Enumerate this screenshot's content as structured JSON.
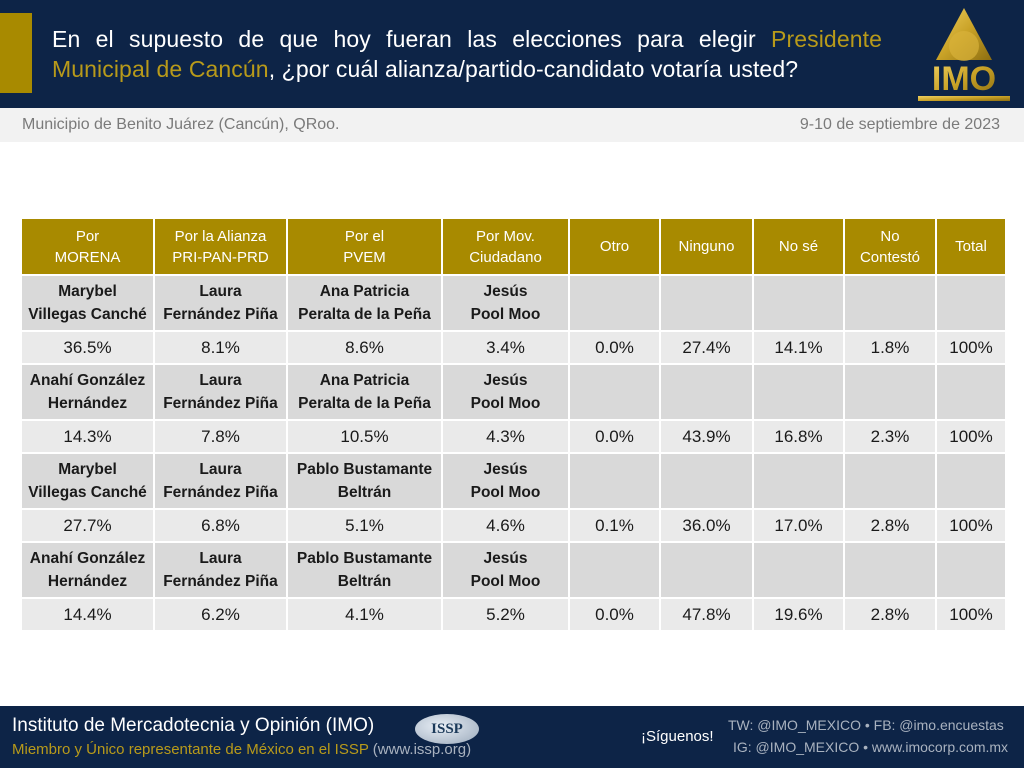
{
  "header": {
    "title_part1": "En el supuesto de que hoy fueran las elecciones para elegir ",
    "title_highlight": "Presidente Municipal de Cancún",
    "title_part2": ", ¿por cuál alianza/partido-candidato votaría usted?",
    "logo_text": "IMO",
    "accent_color": "#a88a00",
    "background_color": "#0d2447"
  },
  "subbar": {
    "location": "Municipio de Benito Juárez (Cancún), QRoo.",
    "date": "9-10 de septiembre de 2023"
  },
  "chart_data": {
    "type": "table",
    "title": "En el supuesto de que hoy fueran las elecciones para elegir Presidente Municipal de Cancún, ¿por cuál alianza/partido-candidato votaría usted?",
    "columns": [
      {
        "line1": "Por",
        "line2": "MORENA"
      },
      {
        "line1": "Por la Alianza",
        "line2": "PRI-PAN-PRD"
      },
      {
        "line1": "Por el",
        "line2": "PVEM"
      },
      {
        "line1": "Por Mov.",
        "line2": "Ciudadano"
      },
      {
        "line1": "Otro",
        "line2": ""
      },
      {
        "line1": "Ninguno",
        "line2": ""
      },
      {
        "line1": "No sé",
        "line2": ""
      },
      {
        "line1": "No",
        "line2": "Contestó"
      },
      {
        "line1": "Total",
        "line2": ""
      }
    ],
    "scenarios": [
      {
        "candidates": [
          {
            "line1": "Marybel",
            "line2": "Villegas Canché"
          },
          {
            "line1": "Laura",
            "line2": "Fernández Piña"
          },
          {
            "line1": "Ana Patricia",
            "line2": "Peralta de la Peña"
          },
          {
            "line1": "Jesús",
            "line2": "Pool Moo"
          }
        ],
        "values": [
          "36.5%",
          "8.1%",
          "8.6%",
          "3.4%",
          "0.0%",
          "27.4%",
          "14.1%",
          "1.8%",
          "100%"
        ]
      },
      {
        "candidates": [
          {
            "line1": "Anahí González",
            "line2": "Hernández"
          },
          {
            "line1": "Laura",
            "line2": "Fernández Piña"
          },
          {
            "line1": "Ana Patricia",
            "line2": "Peralta de la Peña"
          },
          {
            "line1": "Jesús",
            "line2": "Pool Moo"
          }
        ],
        "values": [
          "14.3%",
          "7.8%",
          "10.5%",
          "4.3%",
          "0.0%",
          "43.9%",
          "16.8%",
          "2.3%",
          "100%"
        ]
      },
      {
        "candidates": [
          {
            "line1": "Marybel",
            "line2": "Villegas Canché"
          },
          {
            "line1": "Laura",
            "line2": "Fernández Piña"
          },
          {
            "line1": "Pablo Bustamante",
            "line2": "Beltrán"
          },
          {
            "line1": "Jesús",
            "line2": "Pool Moo"
          }
        ],
        "values": [
          "27.7%",
          "6.8%",
          "5.1%",
          "4.6%",
          "0.1%",
          "36.0%",
          "17.0%",
          "2.8%",
          "100%"
        ]
      },
      {
        "candidates": [
          {
            "line1": "Anahí González",
            "line2": "Hernández"
          },
          {
            "line1": "Laura",
            "line2": "Fernández Piña"
          },
          {
            "line1": "Pablo Bustamante",
            "line2": "Beltrán"
          },
          {
            "line1": "Jesús",
            "line2": "Pool Moo"
          }
        ],
        "values": [
          "14.4%",
          "6.2%",
          "4.1%",
          "5.2%",
          "0.0%",
          "47.8%",
          "19.6%",
          "2.8%",
          "100%"
        ]
      }
    ]
  },
  "footer": {
    "title": "Instituto de Mercadotecnia y Opinión (IMO)",
    "subtitle": "Miembro y Único representante de México en el ISSP",
    "subtitle_link": " (www.issp.org)",
    "issp_badge": "ISSP",
    "follow_label": "¡Síguenos!",
    "social_line1": "TW: @IMO_MEXICO  •  FB: @imo.encuestas",
    "social_line2": "IG: @IMO_MEXICO  •  www.imocorp.com.mx"
  }
}
